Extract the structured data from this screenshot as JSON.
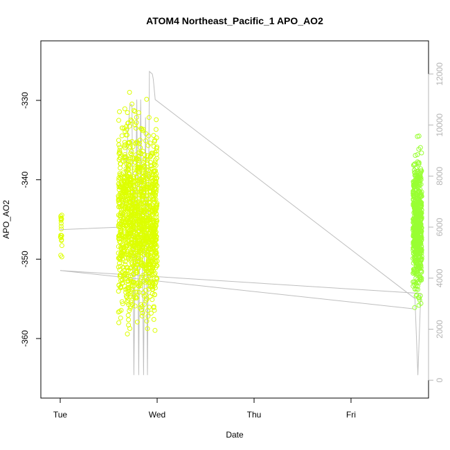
{
  "chart_data": {
    "type": "scatter",
    "title": "ATOM4 Northeast_Pacific_1 APO_AO2",
    "xlabel": "Date",
    "ylabel": "APO_AO2",
    "x_ticks": [
      "Tue",
      "Wed",
      "Thu",
      "Fri"
    ],
    "x_tick_days": [
      0,
      1,
      2,
      3
    ],
    "xlim": [
      -0.2,
      3.8
    ],
    "ylim": [
      -367.5,
      -322.5
    ],
    "y_ticks": [
      -330,
      -340,
      -350,
      -360
    ],
    "y2_ticks": [
      0,
      2000,
      4000,
      6000,
      8000,
      10000,
      12000
    ],
    "y2lim": [
      -700,
      13300
    ],
    "colors": {
      "points_early": "#ddff00",
      "points_late": "#99ff33",
      "secondary_line": "#bebebe",
      "axis": "#000000",
      "right_axis": "#b4b4b4"
    },
    "series": [
      {
        "marker": "open-circle",
        "clusters": [
          {
            "x_range": [
              0.0,
              0.02
            ],
            "y_range": [
              -353.5,
              -340
            ],
            "count": 20
          },
          {
            "x_range": [
              0.6,
              1.0
            ],
            "y_range": [
              -366,
              -324
            ],
            "count": 1300
          },
          {
            "x_range": [
              3.64,
              3.73
            ],
            "y_range": [
              -361,
              -330.5
            ],
            "count": 600
          }
        ]
      },
      {
        "axis": "right",
        "points": [
          [
            0.0,
            5900
          ],
          [
            0.61,
            6000
          ],
          [
            0.65,
            6500
          ],
          [
            0.7,
            9800
          ],
          [
            0.72,
            10800
          ],
          [
            0.74,
            10800
          ],
          [
            0.76,
            200
          ],
          [
            0.79,
            11000
          ],
          [
            0.81,
            200
          ],
          [
            0.83,
            11000
          ],
          [
            0.86,
            200
          ],
          [
            0.88,
            10300
          ],
          [
            0.9,
            200
          ],
          [
            0.92,
            12100
          ],
          [
            0.95,
            12000
          ],
          [
            0.96,
            11800
          ],
          [
            0.98,
            11000
          ],
          [
            3.66,
            3200
          ],
          [
            3.69,
            200
          ],
          [
            3.72,
            3400
          ],
          [
            0.0,
            4300
          ],
          [
            3.64,
            2800
          ]
        ]
      }
    ]
  }
}
